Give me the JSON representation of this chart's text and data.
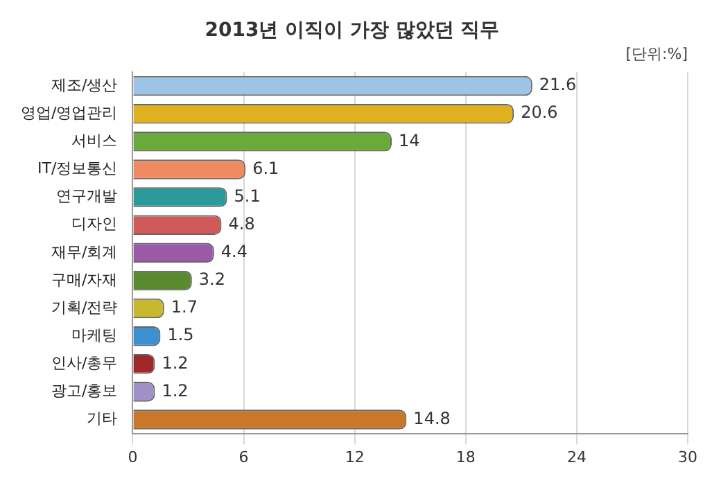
{
  "chart_data": {
    "type": "bar",
    "orientation": "horizontal",
    "title": "2013년 이직이 가장 많았던 직무",
    "subtitle": "[단위:%]",
    "categories": [
      "제조/생산",
      "영업/영업관리",
      "서비스",
      "IT/정보통신",
      "연구개발",
      "디자인",
      "재무/회계",
      "구매/자재",
      "기획/전략",
      "마케팅",
      "인사/총무",
      "광고/홍보",
      "기타"
    ],
    "values": [
      21.6,
      20.6,
      14,
      6.1,
      5.1,
      4.8,
      4.4,
      3.2,
      1.7,
      1.5,
      1.2,
      1.2,
      14.8
    ],
    "colors": [
      "#9dc3e6",
      "#e0b020",
      "#6aaa3a",
      "#f08a60",
      "#2a9a9a",
      "#d05a5a",
      "#9a5aa8",
      "#5a8a30",
      "#c8b830",
      "#3a90d0",
      "#a02828",
      "#a090c8",
      "#c87828"
    ],
    "xlim": [
      0,
      30
    ],
    "xticks": [
      0,
      6,
      12,
      18,
      24,
      30
    ],
    "grid": "x",
    "data_labels": true
  }
}
